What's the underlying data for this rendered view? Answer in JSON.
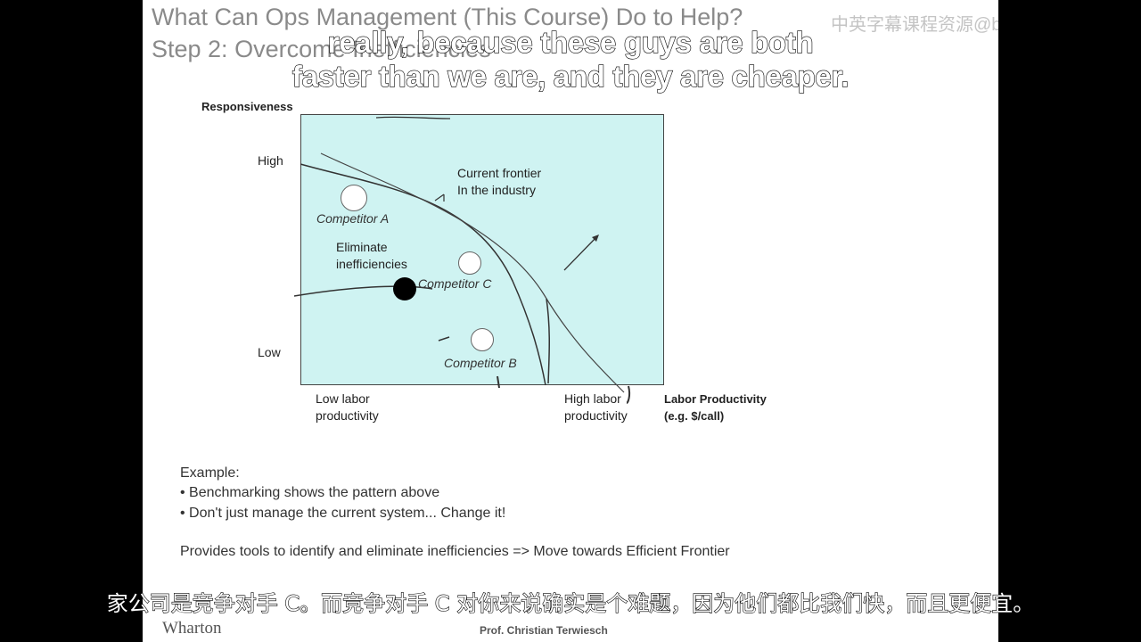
{
  "slide": {
    "title_line1": "What Can Ops Management (This Course) Do to Help?",
    "title_line2": "Step 2: Overcome Inefficiencies",
    "watermark": "中英字幕课程资源@bilibili.com"
  },
  "subtitle": {
    "en_line1": "really, because these guys are both",
    "en_line2": "faster than we are, and they are cheaper.",
    "zh": "家公司是竞争对手 C。而竞争对手 C 对你来说确实是个难题，因为他们都比我们快，而且更便宜。"
  },
  "diagram": {
    "y_axis_label": "Responsiveness",
    "y_high": "High",
    "y_low": "Low",
    "frontier_line1": "Current frontier",
    "frontier_line2": "In the industry",
    "competitor_a": "Competitor A",
    "competitor_b": "Competitor B",
    "competitor_c": "Competitor C",
    "eliminate_line1": "Eliminate",
    "eliminate_line2": "inefficiencies",
    "x_low_line1": "Low labor",
    "x_low_line2": "productivity",
    "x_high_line1": "High labor",
    "x_high_line2": "productivity",
    "x_axis_label_line1": "Labor Productivity",
    "x_axis_label_line2": "(e.g. $/call)"
  },
  "body": {
    "example": "Example:",
    "bullet1": "• Benchmarking shows the pattern above",
    "bullet2": "• Don't just manage the current system... Change it!",
    "provides": "Provides tools to identify and eliminate inefficiencies => Move towards  Efficient Frontier"
  },
  "footer": {
    "logo": "Wharton",
    "presenter": "Prof. Christian Terwiesch"
  }
}
